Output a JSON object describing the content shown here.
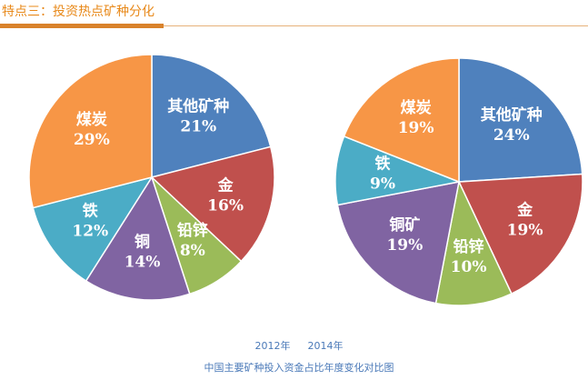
{
  "header": {
    "title": "特点三：投资热点矿种分化"
  },
  "chart_data": [
    {
      "type": "pie",
      "title": "2012年",
      "categories": [
        "其他矿种",
        "金",
        "铅锌",
        "铜",
        "铁",
        "煤炭"
      ],
      "values": [
        21,
        16,
        8,
        14,
        12,
        29
      ],
      "value_labels": [
        "21%",
        "16%",
        "8%",
        "14%",
        "12%",
        "29%"
      ],
      "colors": [
        "#4f81bd",
        "#c0504d",
        "#9bbb59",
        "#8064a2",
        "#4bacc6",
        "#f79646"
      ]
    },
    {
      "type": "pie",
      "title": "2014年",
      "categories": [
        "其他矿种",
        "金",
        "铅锌",
        "铜矿",
        "铁",
        "煤炭"
      ],
      "values": [
        24,
        19,
        10,
        19,
        9,
        19
      ],
      "value_labels": [
        "24%",
        "19%",
        "10%",
        "19%",
        "9%",
        "19%"
      ],
      "colors": [
        "#4f81bd",
        "#c0504d",
        "#9bbb59",
        "#8064a2",
        "#4bacc6",
        "#f79646"
      ]
    }
  ],
  "caption": "中国主要矿种投入资金占比年度变化对比图"
}
